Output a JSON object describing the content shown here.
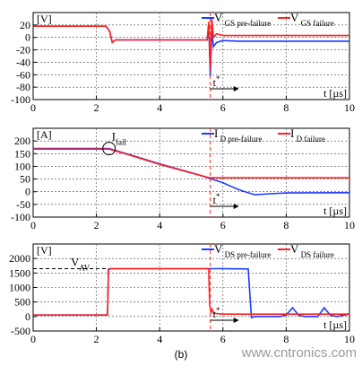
{
  "caption": "(b)",
  "watermark": "www.cntronics.com",
  "colors": {
    "pre_failure": "#1e3cff",
    "failure": "#ff2020",
    "vline": "#ff2020"
  },
  "chart_data": [
    {
      "type": "line",
      "unit_label": "[V]",
      "xlabel": "t [µs]",
      "xlim": [
        0,
        10
      ],
      "ylim": [
        -100,
        40
      ],
      "xticks": [
        0,
        2,
        4,
        6,
        8,
        10
      ],
      "yticks": [
        -100,
        -80,
        -60,
        -40,
        -20,
        0,
        20
      ],
      "grid": true,
      "tstar_label": "t*",
      "tstar_x": 5.6,
      "series": [
        {
          "name": "V_GS pre-failure",
          "main": "V",
          "sub": "GS pre-failure",
          "color": "#1e3cff",
          "x": [
            0,
            2.3,
            2.42,
            2.5,
            2.6,
            3,
            5.4,
            5.5,
            5.55,
            5.6,
            5.65,
            5.7,
            5.8,
            6,
            6.5,
            7,
            8,
            10
          ],
          "y": [
            18,
            18,
            10,
            -8,
            -4,
            -4,
            -4,
            -4,
            20,
            -62,
            10,
            -15,
            -8,
            -5,
            -6,
            -6,
            -6,
            -6
          ]
        },
        {
          "name": "V_GS failure",
          "main": "V",
          "sub": "GS failure",
          "color": "#ff2020",
          "x": [
            0,
            2.3,
            2.42,
            2.5,
            2.6,
            3,
            5.4,
            5.5,
            5.55,
            5.6,
            5.65,
            5.7,
            5.8,
            6,
            6.5,
            7,
            8,
            10
          ],
          "y": [
            18,
            18,
            10,
            -8,
            -4,
            -4,
            -4,
            -4,
            25,
            -50,
            30,
            0,
            6,
            3,
            3,
            3,
            3,
            3
          ]
        }
      ]
    },
    {
      "type": "line",
      "unit_label": "[A]",
      "xlabel": "t [µs]",
      "xlim": [
        0,
        10
      ],
      "ylim": [
        -100,
        250
      ],
      "xticks": [
        0,
        2,
        4,
        6,
        8,
        10
      ],
      "yticks": [
        -100,
        -50,
        0,
        50,
        100,
        150,
        200,
        250
      ],
      "grid": true,
      "tstar_label": "t*",
      "tstar_x": 5.6,
      "annotation": {
        "main": "I",
        "sub": "fail",
        "x": 2.4,
        "y": 170
      },
      "series": [
        {
          "name": "I_D pre-failure",
          "main": "I",
          "sub": "D pre-failure",
          "color": "#1e3cff",
          "x": [
            0,
            2.4,
            3,
            4,
            5,
            5.6,
            6,
            6.5,
            7,
            7.5,
            8,
            10
          ],
          "y": [
            170,
            170,
            148,
            110,
            75,
            52,
            35,
            8,
            -12,
            -8,
            -5,
            -4
          ]
        },
        {
          "name": "I_D failure",
          "main": "I",
          "sub": "D failure",
          "color": "#ff2020",
          "x": [
            0,
            2.4,
            3,
            4,
            5,
            5.55,
            5.6,
            6,
            8,
            10
          ],
          "y": [
            168,
            168,
            146,
            108,
            74,
            56,
            55,
            55,
            55,
            55
          ]
        }
      ]
    },
    {
      "type": "line",
      "unit_label": "[V]",
      "xlabel": "t [µs]",
      "xlim": [
        0,
        10
      ],
      "ylim": [
        -500,
        2500
      ],
      "xticks": [
        0,
        2,
        4,
        6,
        8,
        10
      ],
      "yticks": [
        -500,
        0,
        500,
        1000,
        1500,
        2000,
        2500
      ],
      "grid": true,
      "tstar_label": "t*",
      "tstar_x": 5.6,
      "annotation": {
        "main": "V",
        "sub": "AV",
        "y": 1650
      },
      "series": [
        {
          "name": "V_DS pre-failure",
          "main": "V",
          "sub": "DS pre-failure",
          "color": "#1e3cff",
          "x": [
            0,
            2.35,
            2.38,
            2.45,
            5.55,
            6,
            6.8,
            6.9,
            7,
            7.8,
            8,
            8.2,
            8.4,
            8.6,
            9,
            9.2,
            9.4,
            9.6,
            9.9,
            10
          ],
          "y": [
            50,
            50,
            1620,
            1650,
            1650,
            1650,
            1640,
            -40,
            0,
            0,
            50,
            300,
            40,
            0,
            0,
            300,
            40,
            0,
            60,
            100
          ]
        },
        {
          "name": "V_DS failure",
          "main": "V",
          "sub": "DS failure",
          "color": "#ff2020",
          "x": [
            0,
            2.35,
            2.38,
            2.45,
            5.55,
            5.58,
            5.62,
            5.66,
            5.7,
            5.8,
            6,
            7,
            10
          ],
          "y": [
            50,
            50,
            1620,
            1650,
            1650,
            400,
            150,
            250,
            120,
            100,
            80,
            80,
            80
          ]
        }
      ]
    }
  ]
}
